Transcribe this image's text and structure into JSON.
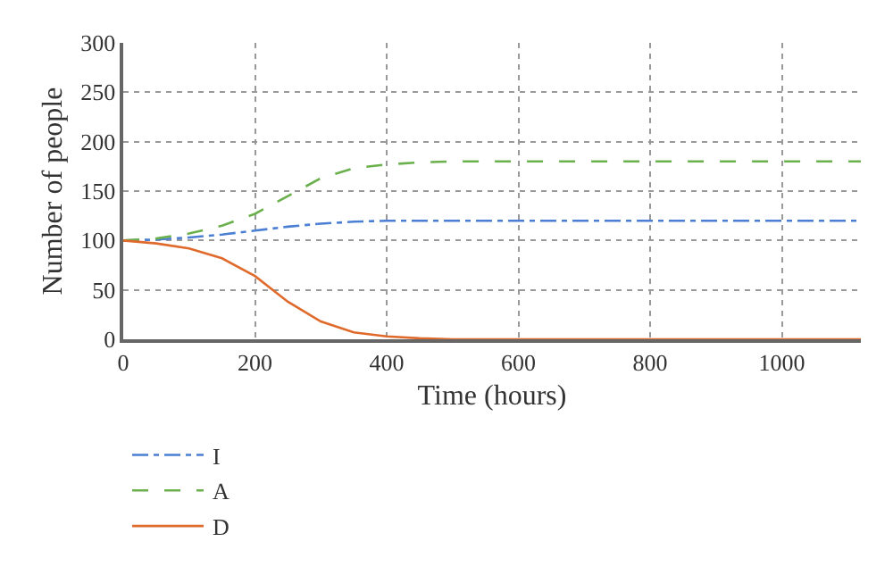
{
  "chart_data": {
    "type": "line",
    "xlabel": "Time (hours)",
    "ylabel": "Number of people",
    "x": [
      0,
      50,
      100,
      150,
      200,
      250,
      300,
      350,
      400,
      450,
      500,
      600,
      700,
      800,
      900,
      1000,
      1120
    ],
    "series": [
      {
        "name": "I",
        "color": "#4a7fd4",
        "line_style": "dashdot",
        "values": [
          100,
          101,
          103,
          106,
          110,
          114,
          117,
          119,
          120,
          120,
          120,
          120,
          120,
          120,
          120,
          120,
          120
        ]
      },
      {
        "name": "A",
        "color": "#6ab04c",
        "line_style": "dashed",
        "values": [
          100,
          102,
          107,
          115,
          127,
          145,
          163,
          173,
          177,
          179,
          180,
          180,
          180,
          180,
          180,
          180,
          180
        ]
      },
      {
        "name": "D",
        "color": "#e06a2c",
        "line_style": "solid",
        "values": [
          100,
          97,
          92,
          82,
          64,
          38,
          18,
          7,
          3,
          1,
          0,
          0,
          0,
          0,
          0,
          0,
          0
        ]
      }
    ],
    "xlim": [
      0,
      1120
    ],
    "xticks": [
      0,
      200,
      400,
      600,
      800,
      1000
    ],
    "ylim": [
      0,
      300
    ],
    "yticks": [
      0,
      50,
      100,
      150,
      200,
      250,
      300
    ],
    "grid": true,
    "legend": "bottom left",
    "marker": "none"
  }
}
